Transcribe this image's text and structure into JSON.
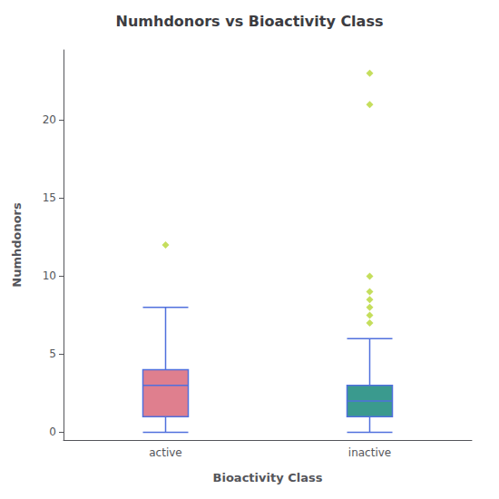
{
  "chart_data": {
    "type": "box",
    "title": "Numhdonors vs Bioactivity Class",
    "xlabel": "Bioactivity Class",
    "ylabel": "Numhdonors",
    "categories": [
      "active",
      "inactive"
    ],
    "boxes": [
      {
        "q1": 1.0,
        "median": 3.0,
        "q3": 4.0,
        "whisker_low": 0.0,
        "whisker_high": 8.0,
        "outliers": [
          12.0
        ]
      },
      {
        "q1": 1.0,
        "median": 2.0,
        "q3": 3.0,
        "whisker_low": 0.0,
        "whisker_high": 6.0,
        "outliers": [
          7.0,
          7.5,
          8.0,
          8.5,
          9.0,
          10.0,
          21.0,
          23.0
        ]
      }
    ],
    "colors": [
      "#df7f8e",
      "#3a9a8e"
    ],
    "marker": "diamond",
    "ylim": [
      -0.5,
      24.5
    ],
    "yticks": [
      0,
      5,
      10,
      15,
      20
    ],
    "grid": false
  }
}
